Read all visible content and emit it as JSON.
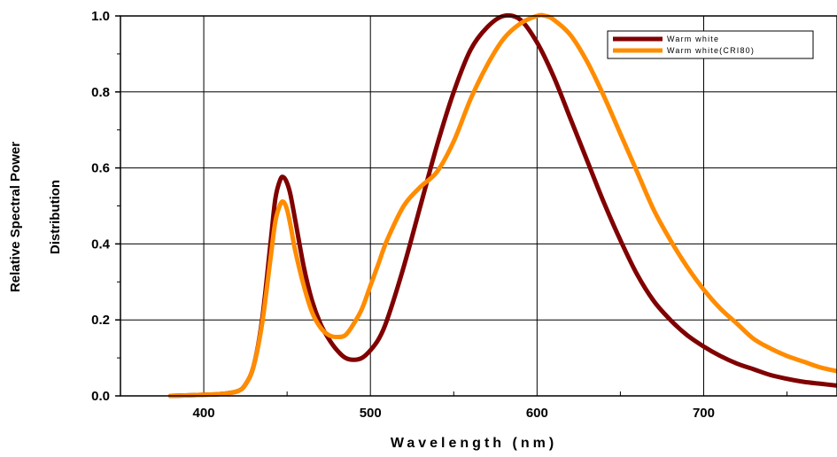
{
  "chart_data": {
    "type": "line",
    "xlabel": "Wavelength (nm)",
    "ylabel": [
      "Relative Spectral Power",
      "Distribution"
    ],
    "xlim": [
      350,
      780
    ],
    "ylim": [
      0,
      1.0
    ],
    "x_ticks": [
      400,
      500,
      600,
      700
    ],
    "x_tick_labels": [
      "400",
      "500",
      "600",
      "700"
    ],
    "y_ticks": [
      0,
      0.2,
      0.4,
      0.6,
      0.8,
      1.0
    ],
    "y_tick_labels": [
      "0.0",
      "0.2",
      "0.4",
      "0.6",
      "0.8",
      "1.0"
    ],
    "grid": true,
    "legend_position": "top-right",
    "series": [
      {
        "name": "Warm white",
        "color": "#800000",
        "x": [
          380,
          400,
          410,
          420,
          425,
          430,
          435,
          440,
          443,
          446,
          448,
          450,
          452,
          455,
          460,
          465,
          470,
          475,
          480,
          485,
          490,
          495,
          500,
          505,
          510,
          520,
          530,
          540,
          550,
          560,
          570,
          580,
          590,
          600,
          610,
          620,
          630,
          640,
          650,
          660,
          670,
          680,
          690,
          700,
          710,
          720,
          730,
          740,
          750,
          760,
          770,
          780
        ],
        "y": [
          0.0,
          0.003,
          0.005,
          0.012,
          0.03,
          0.08,
          0.2,
          0.4,
          0.52,
          0.57,
          0.575,
          0.56,
          0.53,
          0.46,
          0.34,
          0.25,
          0.19,
          0.15,
          0.12,
          0.1,
          0.095,
          0.1,
          0.12,
          0.15,
          0.2,
          0.34,
          0.5,
          0.66,
          0.8,
          0.91,
          0.97,
          1.0,
          0.99,
          0.93,
          0.84,
          0.73,
          0.62,
          0.51,
          0.41,
          0.32,
          0.25,
          0.2,
          0.16,
          0.13,
          0.105,
          0.085,
          0.07,
          0.055,
          0.045,
          0.037,
          0.032,
          0.027
        ]
      },
      {
        "name": "Warm white(CRI80)",
        "color": "#ff8c00",
        "x": [
          380,
          400,
          410,
          420,
          425,
          430,
          435,
          440,
          443,
          446,
          448,
          450,
          452,
          455,
          460,
          465,
          470,
          475,
          480,
          485,
          490,
          495,
          500,
          505,
          510,
          520,
          530,
          540,
          550,
          560,
          570,
          580,
          590,
          600,
          605,
          610,
          620,
          630,
          640,
          650,
          660,
          670,
          680,
          690,
          700,
          710,
          720,
          730,
          740,
          750,
          760,
          770,
          780
        ],
        "y": [
          0.0,
          0.003,
          0.005,
          0.012,
          0.03,
          0.08,
          0.19,
          0.36,
          0.46,
          0.505,
          0.51,
          0.49,
          0.45,
          0.38,
          0.29,
          0.22,
          0.18,
          0.16,
          0.155,
          0.16,
          0.19,
          0.23,
          0.29,
          0.35,
          0.41,
          0.5,
          0.55,
          0.59,
          0.67,
          0.78,
          0.87,
          0.94,
          0.98,
          1.0,
          1.0,
          0.99,
          0.95,
          0.88,
          0.79,
          0.69,
          0.59,
          0.49,
          0.41,
          0.34,
          0.28,
          0.23,
          0.19,
          0.15,
          0.125,
          0.105,
          0.09,
          0.075,
          0.065
        ]
      }
    ]
  }
}
